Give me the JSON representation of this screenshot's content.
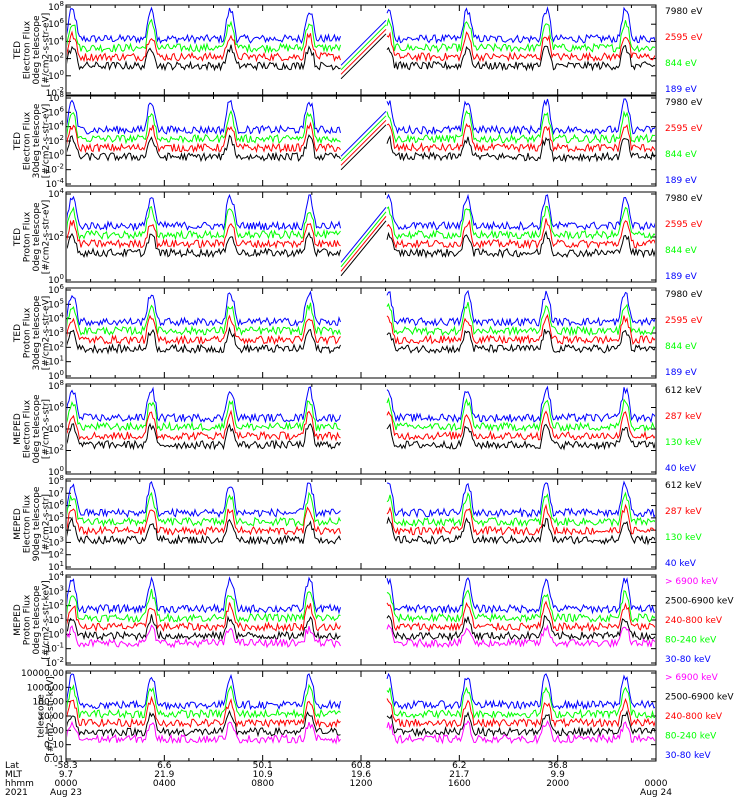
{
  "colors": {
    "blue": "#0000ff",
    "red": "#ff0000",
    "green": "#00ff00",
    "black": "#000000",
    "magenta": "#ff00ff"
  },
  "chart_data": [
    {
      "type": "line",
      "ylabel": [
        "TED",
        "Electron Flux",
        "0deg telescope",
        "[#/cm2-s-str-eV]"
      ],
      "yscale": "log",
      "yticks": [
        "10^8",
        "10^6",
        "10^4",
        "10^2",
        "10^0",
        "10^-2"
      ],
      "series": [
        {
          "name": "7980 eV",
          "color": "#000000"
        },
        {
          "name": "2595 eV",
          "color": "#ff0000"
        },
        {
          "name": "844 eV",
          "color": "#00ff00"
        },
        {
          "name": "189 eV",
          "color": "#0000ff"
        }
      ]
    },
    {
      "type": "line",
      "ylabel": [
        "TED",
        "Electron Flux",
        "30deg telescope",
        "[#/cm2-s-str-eV]"
      ],
      "yscale": "log",
      "yticks": [
        "10^8",
        "10^6",
        "10^4",
        "10^2",
        "10^0",
        "10^-2",
        "10^-4"
      ],
      "series": [
        {
          "name": "7980 eV",
          "color": "#000000"
        },
        {
          "name": "2595 eV",
          "color": "#ff0000"
        },
        {
          "name": "844 eV",
          "color": "#00ff00"
        },
        {
          "name": "189 eV",
          "color": "#0000ff"
        }
      ]
    },
    {
      "type": "line",
      "ylabel": [
        "TED",
        "Proton Flux",
        "0deg telescope",
        "[#/cm2-s-str-eV]"
      ],
      "yscale": "log",
      "yticks": [
        "10^4",
        "10^2",
        "10^0"
      ],
      "series": [
        {
          "name": "7980 eV",
          "color": "#000000"
        },
        {
          "name": "2595 eV",
          "color": "#ff0000"
        },
        {
          "name": "844 eV",
          "color": "#00ff00"
        },
        {
          "name": "189 eV",
          "color": "#0000ff"
        }
      ]
    },
    {
      "type": "line",
      "ylabel": [
        "TED",
        "Proton Flux",
        "30deg telescope",
        "[#/cm2-s-str-eV]"
      ],
      "yscale": "log",
      "yticks": [
        "10^6",
        "10^5",
        "10^4",
        "10^3",
        "10^2",
        "10^1",
        "10^0"
      ],
      "series": [
        {
          "name": "7980 eV",
          "color": "#000000"
        },
        {
          "name": "2595 eV",
          "color": "#ff0000"
        },
        {
          "name": "844 eV",
          "color": "#00ff00"
        },
        {
          "name": "189 eV",
          "color": "#0000ff"
        }
      ]
    },
    {
      "type": "line",
      "ylabel": [
        "MEPED",
        "Electron Flux",
        "0deg telescope",
        "[#/cm2-s-str]"
      ],
      "yscale": "log",
      "yticks": [
        "10^8",
        "10^6",
        "10^4",
        "10^2",
        "10^0"
      ],
      "series": [
        {
          "name": "612 keV",
          "color": "#000000"
        },
        {
          "name": "287 keV",
          "color": "#ff0000"
        },
        {
          "name": "130 keV",
          "color": "#00ff00"
        },
        {
          "name": "40 keV",
          "color": "#0000ff"
        }
      ]
    },
    {
      "type": "line",
      "ylabel": [
        "MEPED",
        "Electron Flux",
        "90deg telescope",
        "[#/cm2-s-str]"
      ],
      "yscale": "log",
      "yticks": [
        "10^8",
        "10^7",
        "10^6",
        "10^5",
        "10^4",
        "10^3",
        "10^2",
        "10^1"
      ],
      "series": [
        {
          "name": "612 keV",
          "color": "#000000"
        },
        {
          "name": "287 keV",
          "color": "#ff0000"
        },
        {
          "name": "130 keV",
          "color": "#00ff00"
        },
        {
          "name": "40 keV",
          "color": "#0000ff"
        }
      ]
    },
    {
      "type": "line",
      "ylabel": [
        "MEPED",
        "Proton Flux",
        "0deg telescope",
        "[#/cm2-s-str-keV]"
      ],
      "yscale": "log",
      "yticks": [
        "10^4",
        "10^3",
        "10^2",
        "10^1",
        "10^0",
        "10^-1",
        "10^-2"
      ],
      "series": [
        {
          "name": "> 6900 keV",
          "color": "#ff00ff"
        },
        {
          "name": "2500-6900 keV",
          "color": "#000000"
        },
        {
          "name": "240-800 keV",
          "color": "#ff0000"
        },
        {
          "name": "80-240 keV",
          "color": "#00ff00"
        },
        {
          "name": "30-80 keV",
          "color": "#0000ff"
        }
      ]
    },
    {
      "type": "line",
      "ylabel": [
        "telescope",
        "[#/cm2-s-str-keV]"
      ],
      "yscale": "log",
      "yticks": [
        "10000.00",
        "1000.00",
        "100.00",
        "10.00",
        "1.00",
        "0.10",
        "0.01"
      ],
      "series": [
        {
          "name": "> 6900 keV",
          "color": "#ff00ff"
        },
        {
          "name": "2500-6900 keV",
          "color": "#000000"
        },
        {
          "name": "240-800 keV",
          "color": "#ff0000"
        },
        {
          "name": "80-240 keV",
          "color": "#00ff00"
        },
        {
          "name": "30-80 keV",
          "color": "#0000ff"
        }
      ]
    }
  ],
  "xaxis": {
    "row_labels": [
      "Lat",
      "MLT",
      "hhmm",
      "2021"
    ],
    "lat": [
      "-58.3",
      "6.6",
      "50.1",
      "60.8",
      "6.2",
      "36.8"
    ],
    "mlt": [
      "9.7",
      "21.9",
      "10.9",
      "19.6",
      "21.7",
      "9.9"
    ],
    "hhmm": [
      "0000",
      "0400",
      "0800",
      "1200",
      "1600",
      "2000",
      "0000"
    ],
    "dates": [
      "Aug 23",
      "Aug 24"
    ]
  }
}
